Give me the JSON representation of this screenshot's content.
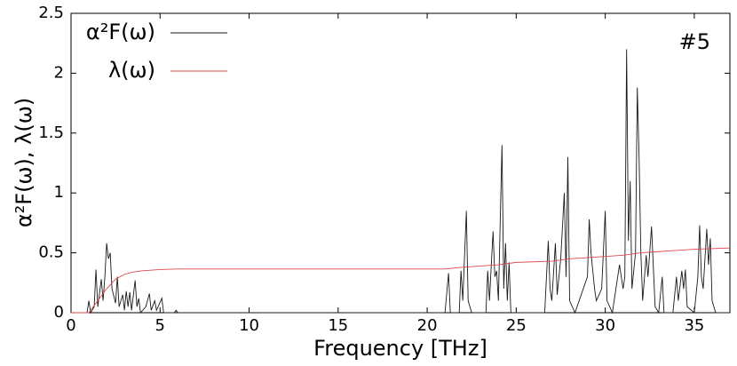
{
  "chart_data": {
    "type": "line",
    "annotation": "#5",
    "xlabel": "Frequency [THz]",
    "ylabel": "α²F(ω), λ(ω)",
    "xlim": [
      0,
      37
    ],
    "ylim": [
      0,
      2.5
    ],
    "xticks": [
      0,
      5,
      10,
      15,
      20,
      25,
      30,
      35
    ],
    "yticks": [
      0,
      0.5,
      1,
      1.5,
      2,
      2.5
    ],
    "grid": false,
    "legend": "upper left",
    "series": [
      {
        "name": "α²F(ω)",
        "color": "#1a1a1a",
        "x": [
          0,
          0.9,
          1.0,
          1.1,
          1.3,
          1.4,
          1.5,
          1.7,
          1.8,
          1.9,
          2.0,
          2.1,
          2.2,
          2.3,
          2.5,
          2.6,
          2.7,
          2.9,
          3.0,
          3.1,
          3.2,
          3.3,
          3.4,
          3.6,
          3.7,
          3.8,
          3.9,
          4.2,
          4.4,
          4.5,
          4.7,
          4.8,
          5.1,
          5.2,
          5.8,
          5.9,
          6.0,
          21.0,
          21.2,
          21.3,
          21.8,
          21.9,
          22.0,
          22.2,
          22.3,
          22.5,
          23.3,
          23.4,
          23.5,
          23.6,
          23.7,
          23.8,
          23.9,
          24.0,
          24.2,
          24.3,
          24.4,
          24.5,
          24.6,
          24.7,
          26.6,
          26.8,
          26.9,
          27.0,
          27.2,
          27.3,
          27.5,
          27.7,
          27.8,
          27.9,
          28.0,
          28.3,
          29.0,
          29.1,
          29.2,
          29.4,
          29.5,
          29.8,
          30.0,
          30.1,
          30.4,
          30.8,
          31.0,
          31.1,
          31.2,
          31.3,
          31.4,
          31.5,
          31.7,
          31.8,
          31.9,
          32.0,
          32.1,
          32.3,
          32.4,
          32.6,
          32.8,
          33.0,
          33.2,
          33.3,
          33.8,
          34.0,
          34.1,
          34.3,
          34.4,
          34.5,
          34.6,
          35.0,
          35.2,
          35.3,
          35.4,
          35.5,
          35.7,
          35.8,
          35.9,
          36.0,
          36.2,
          37
        ],
        "values": [
          0,
          0,
          0.1,
          0,
          0.05,
          0.36,
          0.05,
          0.28,
          0.1,
          0.3,
          0.58,
          0.45,
          0.5,
          0.2,
          0.08,
          0.3,
          0.05,
          0.15,
          0.02,
          0.18,
          0.05,
          0.17,
          0.02,
          0.27,
          0.05,
          0.12,
          0,
          0.05,
          0.16,
          0.02,
          0.1,
          0.02,
          0.12,
          0,
          0,
          0.02,
          0,
          0,
          0.33,
          0,
          0,
          0.35,
          0.1,
          0.85,
          0.1,
          0,
          0,
          0.35,
          0.1,
          0.4,
          0.68,
          0.3,
          0.35,
          0.1,
          1.4,
          0.2,
          0.58,
          0.1,
          0.42,
          0,
          0,
          0.6,
          0.2,
          0.1,
          0.58,
          0.15,
          0.45,
          1.0,
          0.3,
          1.3,
          0.1,
          0,
          0.3,
          0.78,
          0.5,
          0.2,
          0.1,
          0.2,
          0.85,
          0.1,
          0,
          0.4,
          0.2,
          0.3,
          2.2,
          0.6,
          1.1,
          0.2,
          0.5,
          1.88,
          1.3,
          0.5,
          0.1,
          0.48,
          0.3,
          0.72,
          0.05,
          0,
          0.3,
          0,
          0,
          0.3,
          0.1,
          0.35,
          0.2,
          0.36,
          0.05,
          0,
          0.3,
          0.73,
          0.3,
          0.2,
          0.7,
          0.4,
          0.62,
          0.1,
          0,
          0
        ]
      },
      {
        "name": "λ(ω)",
        "color": "#e0474c",
        "x": [
          0,
          1.0,
          1.5,
          2.0,
          2.5,
          3.0,
          3.5,
          4.0,
          5.0,
          6.0,
          21.0,
          22.0,
          24.0,
          25.0,
          27.0,
          28.0,
          30.0,
          31.0,
          32.0,
          33.0,
          35.0,
          37.0
        ],
        "values": [
          0,
          0,
          0.1,
          0.2,
          0.28,
          0.32,
          0.34,
          0.35,
          0.36,
          0.365,
          0.365,
          0.38,
          0.4,
          0.42,
          0.43,
          0.45,
          0.47,
          0.48,
          0.5,
          0.51,
          0.53,
          0.54
        ]
      }
    ]
  }
}
